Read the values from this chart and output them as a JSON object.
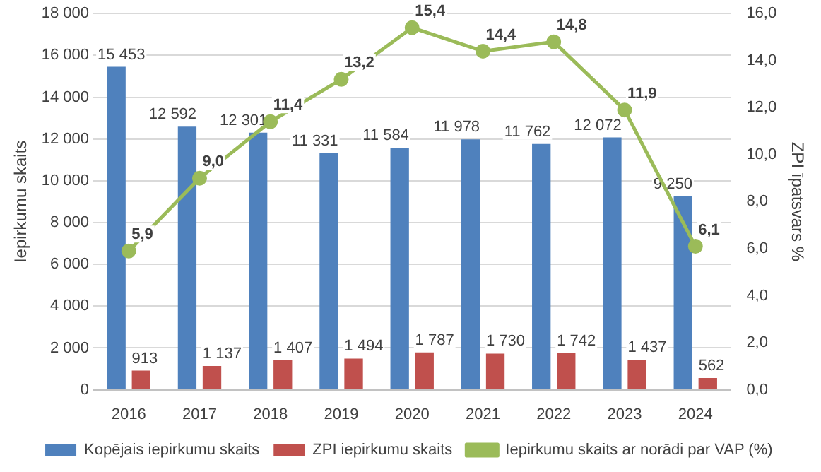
{
  "chart_data": {
    "type": "bar",
    "categories": [
      "2016",
      "2017",
      "2018",
      "2019",
      "2020",
      "2021",
      "2022",
      "2023",
      "2024"
    ],
    "ylabel": "Iepirkumu skaits",
    "y2label": "ZPI īpatsvars %",
    "ylim": [
      0,
      18000
    ],
    "yticks": [
      0,
      {
        "value": 2000,
        "label": "2 000"
      },
      {
        "value": 4000,
        "label": "4 000"
      },
      {
        "value": 6000,
        "label": "6 000"
      },
      {
        "value": 8000,
        "label": "8 000"
      },
      {
        "value": 10000,
        "label": "10 000"
      },
      {
        "value": 12000,
        "label": "12 000"
      },
      {
        "value": 14000,
        "label": "14 000"
      },
      {
        "value": 16000,
        "label": "16 000"
      },
      {
        "value": 18000,
        "label": "18 000"
      }
    ],
    "y2lim": [
      0,
      16
    ],
    "y2ticks": [
      {
        "value": 0,
        "label": "0,0"
      },
      {
        "value": 2,
        "label": "2,0"
      },
      {
        "value": 4,
        "label": "4,0"
      },
      {
        "value": 6,
        "label": "6,0"
      },
      {
        "value": 8,
        "label": "8,0"
      },
      {
        "value": 10,
        "label": "10,0"
      },
      {
        "value": 12,
        "label": "12,0"
      },
      {
        "value": 14,
        "label": "14,0"
      },
      {
        "value": 16,
        "label": "16,0"
      }
    ],
    "grid": "y",
    "legend": "bottom",
    "marker": "circle",
    "series": [
      {
        "name": "Kopējais iepirkumu skaits",
        "color": "#4f81bd",
        "values": [
          15453,
          12592,
          12301,
          11331,
          11584,
          11978,
          11762,
          12072,
          9250
        ],
        "value_labels": [
          "15 453",
          "12 592",
          "12 301",
          "11 331",
          "11 584",
          "11 978",
          "11 762",
          "12 072",
          "9 250"
        ]
      },
      {
        "name": "ZPI iepirkumu skaits",
        "color": "#c0504d",
        "values": [
          913,
          1137,
          1407,
          1494,
          1787,
          1730,
          1742,
          1437,
          562
        ],
        "value_labels": [
          "913",
          "1 137",
          "1 407",
          "1 494",
          "1 787",
          "1 730",
          "1 742",
          "1 437",
          "562"
        ]
      },
      {
        "name": "Iepirkumu skaits ar norādi par VAP (%)",
        "type": "line",
        "axis": "y2",
        "color": "#9bbb59",
        "values": [
          5.9,
          9.0,
          11.4,
          13.2,
          15.4,
          14.4,
          14.8,
          11.9,
          6.1
        ],
        "value_labels": [
          "5,9",
          "9,0",
          "11,4",
          "13,2",
          "15,4",
          "14,4",
          "14,8",
          "11,9",
          "6,1"
        ]
      }
    ]
  }
}
